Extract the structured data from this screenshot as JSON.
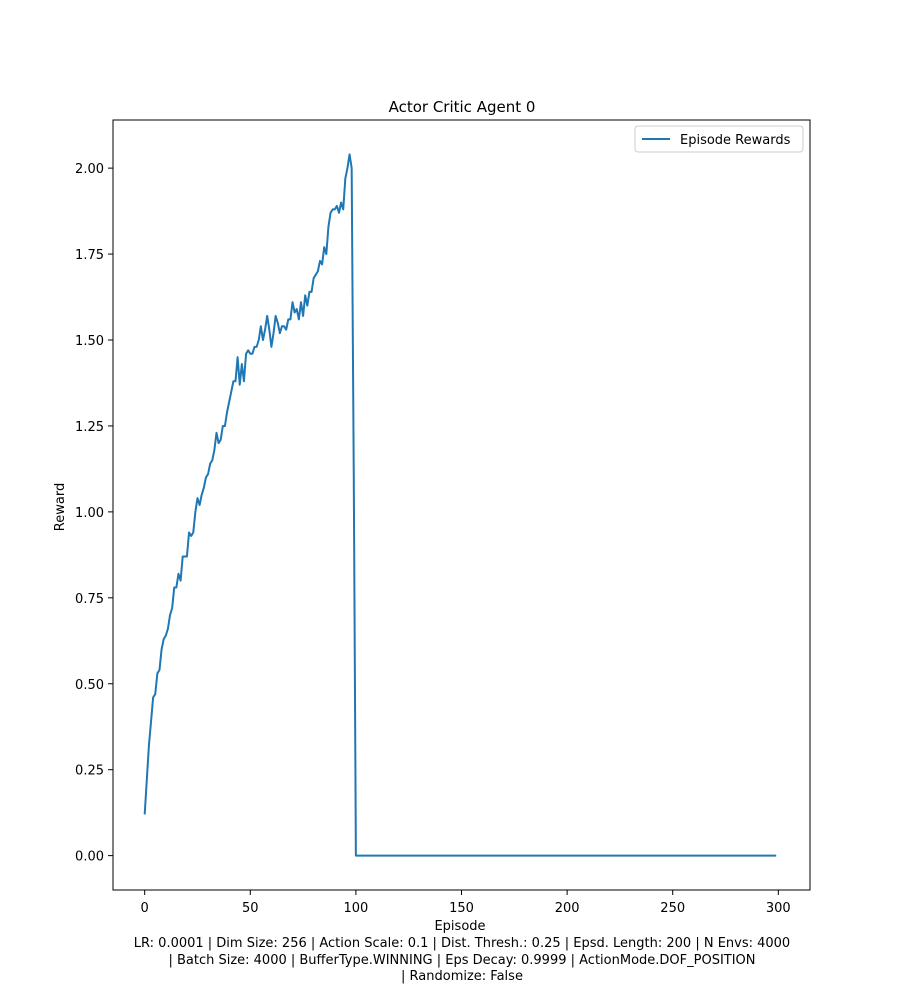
{
  "chart_data": {
    "type": "line",
    "title": "Actor Critic Agent 0",
    "xlabel": "Episode",
    "ylabel": "Reward",
    "xlim": [
      -15,
      315
    ],
    "ylim": [
      -0.1,
      2.14
    ],
    "xticks": [
      0,
      50,
      100,
      150,
      200,
      250,
      300
    ],
    "yticks": [
      0.0,
      0.25,
      0.5,
      0.75,
      1.0,
      1.25,
      1.5,
      1.75,
      2.0
    ],
    "xtick_labels": [
      "0",
      "50",
      "100",
      "150",
      "200",
      "250",
      "300"
    ],
    "ytick_labels": [
      "0.00",
      "0.25",
      "0.50",
      "0.75",
      "1.00",
      "1.25",
      "1.50",
      "1.75",
      "2.00"
    ],
    "grid": false,
    "legend": {
      "position": "top-right",
      "entries": [
        "Episode Rewards"
      ]
    },
    "color": "#1f77b4",
    "series": [
      {
        "name": "Episode Rewards",
        "x": [
          0,
          1,
          2,
          3,
          4,
          5,
          6,
          7,
          8,
          9,
          10,
          11,
          12,
          13,
          14,
          15,
          16,
          17,
          18,
          19,
          20,
          21,
          22,
          23,
          24,
          25,
          26,
          27,
          28,
          29,
          30,
          31,
          32,
          33,
          34,
          35,
          36,
          37,
          38,
          39,
          40,
          41,
          42,
          43,
          44,
          45,
          46,
          47,
          48,
          49,
          50,
          51,
          52,
          53,
          54,
          55,
          56,
          57,
          58,
          59,
          60,
          61,
          62,
          63,
          64,
          65,
          66,
          67,
          68,
          69,
          70,
          71,
          72,
          73,
          74,
          75,
          76,
          77,
          78,
          79,
          80,
          81,
          82,
          83,
          84,
          85,
          86,
          87,
          88,
          89,
          90,
          91,
          92,
          93,
          94,
          95,
          96,
          97,
          98,
          99,
          100,
          299
        ],
        "y": [
          0.12,
          0.22,
          0.32,
          0.39,
          0.46,
          0.47,
          0.53,
          0.54,
          0.6,
          0.63,
          0.64,
          0.66,
          0.7,
          0.72,
          0.78,
          0.78,
          0.82,
          0.8,
          0.87,
          0.87,
          0.87,
          0.94,
          0.93,
          0.94,
          1.0,
          1.04,
          1.02,
          1.05,
          1.07,
          1.1,
          1.11,
          1.14,
          1.15,
          1.18,
          1.23,
          1.2,
          1.21,
          1.25,
          1.25,
          1.29,
          1.32,
          1.35,
          1.38,
          1.38,
          1.45,
          1.37,
          1.43,
          1.38,
          1.46,
          1.47,
          1.46,
          1.46,
          1.48,
          1.48,
          1.5,
          1.54,
          1.5,
          1.53,
          1.57,
          1.53,
          1.48,
          1.52,
          1.57,
          1.55,
          1.52,
          1.54,
          1.54,
          1.53,
          1.56,
          1.56,
          1.61,
          1.58,
          1.59,
          1.56,
          1.61,
          1.57,
          1.63,
          1.6,
          1.64,
          1.64,
          1.68,
          1.69,
          1.7,
          1.73,
          1.72,
          1.77,
          1.75,
          1.83,
          1.87,
          1.88,
          1.88,
          1.89,
          1.87,
          1.9,
          1.88,
          1.97,
          2.0,
          2.04,
          2.0,
          1.1,
          0.0,
          0.0
        ]
      }
    ]
  },
  "caption": {
    "line1": "LR: 0.0001 | Dim Size: 256 | Action Scale: 0.1 | Dist. Thresh.: 0.25 | Epsd. Length: 200 | N Envs: 4000",
    "line2": "| Batch Size: 4000 | BufferType.WINNING | Eps Decay: 0.9999 | ActionMode.DOF_POSITION",
    "line3": "| Randomize: False"
  }
}
